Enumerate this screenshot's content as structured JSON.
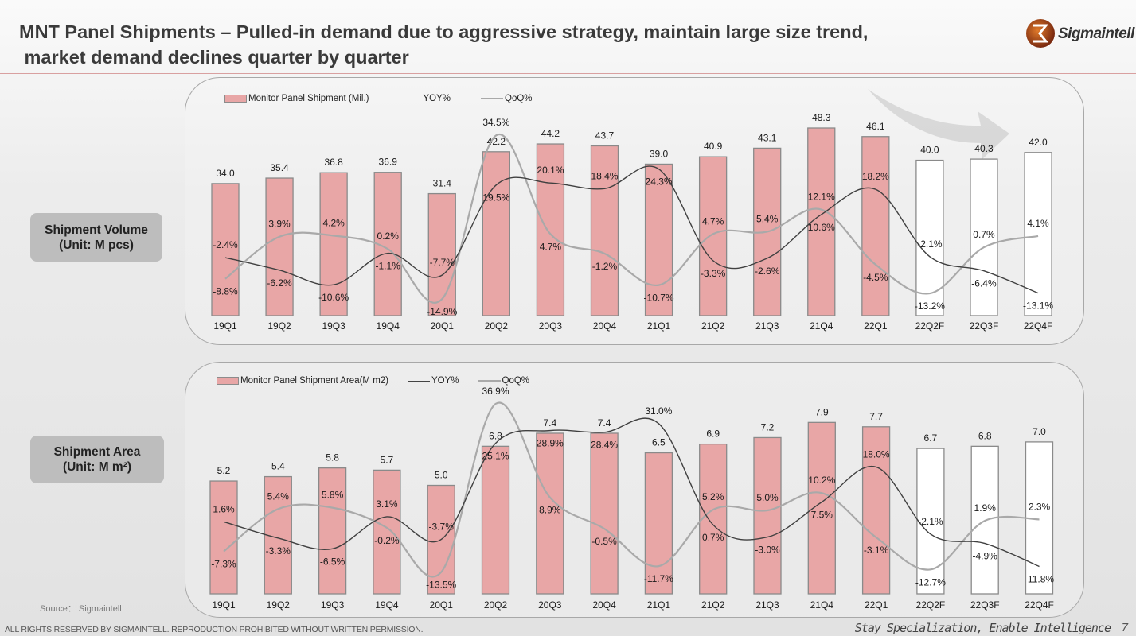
{
  "header": {
    "title_line1": "MNT Panel Shipments – Pulled-in demand due to aggressive strategy, maintain large size trend,",
    "title_line2": " market demand declines quarter by quarter",
    "logo_text": "Sigmaintell"
  },
  "side_labels": {
    "volume": {
      "line1": "Shipment Volume",
      "line2": "(Unit: M pcs)"
    },
    "area": {
      "line1": "Shipment Area",
      "line2": "(Unit: M m²)"
    }
  },
  "colors": {
    "bar_actual": "#e8a6a6",
    "bar_forecast": "#ffffff",
    "yoy_line": "#404040",
    "qoq_line": "#a9a9a9",
    "accent": "#c0392b"
  },
  "chart_data": [
    {
      "type": "bar+line",
      "categories": [
        "19Q1",
        "19Q2",
        "19Q3",
        "19Q4",
        "20Q1",
        "20Q2",
        "20Q3",
        "20Q4",
        "21Q1",
        "21Q2",
        "21Q3",
        "21Q4",
        "22Q1",
        "22Q2F",
        "22Q3F",
        "22Q4F"
      ],
      "forecast_categories": [
        "22Q2F",
        "22Q3F",
        "22Q4F"
      ],
      "legend_position": "top-left",
      "grid": false,
      "series": [
        {
          "name": "Monitor Panel Shipment (Mil.)",
          "kind": "bar",
          "values": [
            34.0,
            35.4,
            36.8,
            36.9,
            31.4,
            42.2,
            44.2,
            43.7,
            39.0,
            40.9,
            43.1,
            48.3,
            46.1,
            40.0,
            40.3,
            42.0
          ]
        },
        {
          "name": "YOY%",
          "kind": "line",
          "values": [
            -2.4,
            -6.2,
            -10.6,
            -1.1,
            -7.7,
            19.5,
            20.1,
            18.4,
            24.3,
            -3.3,
            -2.6,
            10.6,
            18.2,
            -2.1,
            -6.4,
            -13.1
          ]
        },
        {
          "name": "QoQ%",
          "kind": "line",
          "values": [
            -8.8,
            3.9,
            4.2,
            0.2,
            -14.9,
            34.5,
            4.7,
            -1.2,
            -10.7,
            4.7,
            5.4,
            12.1,
            -4.5,
            -13.2,
            0.7,
            4.1
          ]
        }
      ]
    },
    {
      "type": "bar+line",
      "categories": [
        "19Q1",
        "19Q2",
        "19Q3",
        "19Q4",
        "20Q1",
        "20Q2",
        "20Q3",
        "20Q4",
        "21Q1",
        "21Q2",
        "21Q3",
        "21Q4",
        "22Q1",
        "22Q2F",
        "22Q3F",
        "22Q4F"
      ],
      "forecast_categories": [
        "22Q2F",
        "22Q3F",
        "22Q4F"
      ],
      "legend_position": "top-left",
      "grid": false,
      "series": [
        {
          "name": "Monitor Panel Shipment Area(M m2)",
          "kind": "bar",
          "values": [
            5.2,
            5.4,
            5.8,
            5.7,
            5.0,
            6.8,
            7.4,
            7.4,
            6.5,
            6.9,
            7.2,
            7.9,
            7.7,
            6.7,
            6.8,
            7.0
          ]
        },
        {
          "name": "YOY%",
          "kind": "line",
          "values": [
            1.6,
            -3.3,
            -6.5,
            3.1,
            -3.7,
            25.1,
            28.9,
            28.4,
            31.0,
            0.7,
            -3.0,
            7.5,
            18.0,
            -2.1,
            -4.9,
            -11.8
          ]
        },
        {
          "name": "QoQ%",
          "kind": "line",
          "values": [
            -7.3,
            5.4,
            5.8,
            -0.2,
            -13.5,
            36.9,
            8.9,
            -0.5,
            -11.7,
            5.2,
            5.0,
            10.2,
            -3.1,
            -12.7,
            1.9,
            2.3
          ]
        }
      ]
    }
  ],
  "footer": {
    "source": "Source： Sigmaintell",
    "rights": "ALL RIGHTS RESERVED BY SIGMAINTELL. REPRODUCTION PROHIBITED WITHOUT WRITTEN PERMISSION.",
    "slogan": "Stay Specialization, Enable Intelligence",
    "page_number": "7"
  }
}
